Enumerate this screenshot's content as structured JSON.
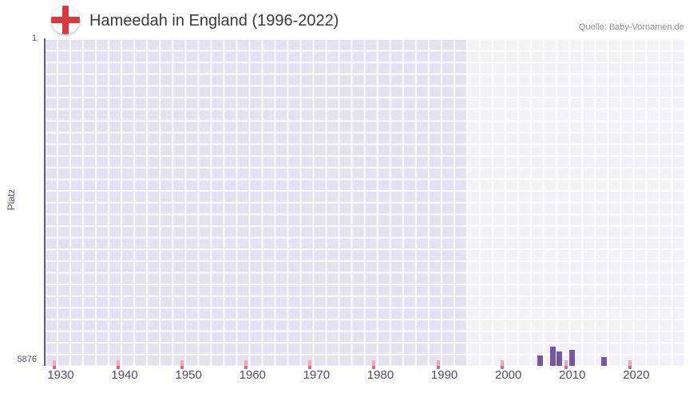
{
  "header": {
    "title": "Hameedah in England (1996-2022)",
    "source": "Quelle: Baby-Vornamen.de"
  },
  "axes": {
    "y_axis_label": "Platz",
    "y_tick_top": "1",
    "y_tick_bottom": "5876",
    "x_ticks": [
      "1930",
      "1940",
      "1950",
      "1960",
      "1970",
      "1980",
      "1990",
      "2000",
      "2010",
      "2020"
    ]
  },
  "chart_data": {
    "type": "bar",
    "title": "Hameedah in England (1996-2022)",
    "xlabel": "",
    "ylabel": "Platz",
    "grid": true,
    "x_range": [
      1927,
      2027
    ],
    "y_axis": {
      "best_rank": 1,
      "worst_rank": 5876,
      "inverted": true
    },
    "highlight_period": [
      1993.5,
      2027
    ],
    "series": [
      {
        "name": "Hameedah",
        "years": [
          2005,
          2007,
          2008,
          2010,
          2015
        ],
        "ranks": [
          5690,
          5530,
          5620,
          5590,
          5720
        ]
      }
    ],
    "decade_tick_years": [
      1929,
      1939,
      1949,
      1959,
      1969,
      1979,
      1989,
      1999,
      2009,
      2019
    ],
    "colors": {
      "bar": "#7456a8",
      "plot_background": "#e5e2f0",
      "highlight_overlay": "rgba(255,255,255,0.5)",
      "grid_line": "#ffffff",
      "axis_line": "#6a5b9d",
      "tick_mark_pink": "#f3a7bb",
      "tick_mark_red": "#e4647f",
      "flag_cross_red": "#d93a3c"
    }
  }
}
